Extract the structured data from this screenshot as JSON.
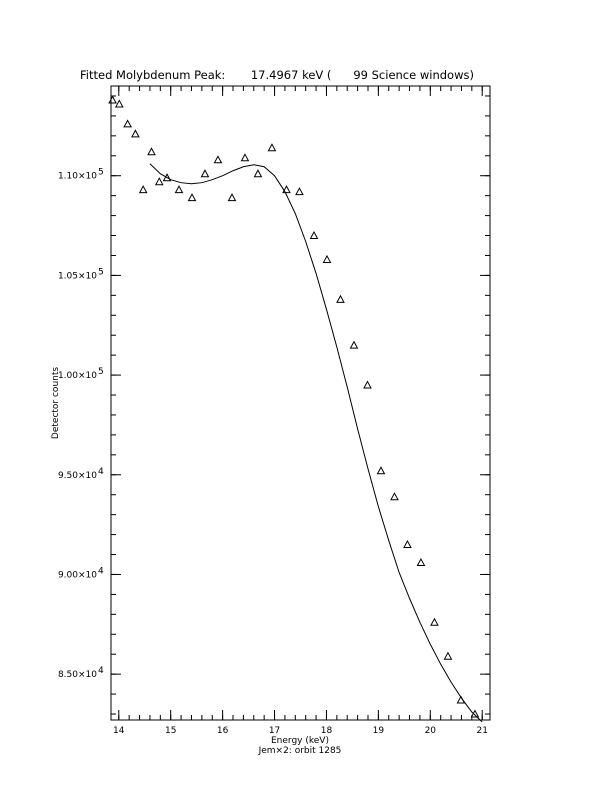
{
  "chart_data": {
    "type": "scatter",
    "title": "Fitted Molybdenum Peak:       17.4967 keV (      99 Science windows)",
    "xlabel": "Energy (keV)",
    "ylabel": "Detector counts",
    "subtitle": "Jem×2: orbit 1285",
    "xlim": [
      13.85,
      21.15
    ],
    "ylim": [
      82700,
      114500
    ],
    "x_ticks": [
      {
        "value": 14,
        "label": "14"
      },
      {
        "value": 15,
        "label": "15"
      },
      {
        "value": 16,
        "label": "16"
      },
      {
        "value": 17,
        "label": "17"
      },
      {
        "value": 18,
        "label": "18"
      },
      {
        "value": 19,
        "label": "19"
      },
      {
        "value": 20,
        "label": "20"
      },
      {
        "value": 21,
        "label": "21"
      }
    ],
    "y_ticks": [
      {
        "value": 85000,
        "mantissa": "8.50×10",
        "exp": "4"
      },
      {
        "value": 90000,
        "mantissa": "9.00×10",
        "exp": "4"
      },
      {
        "value": 95000,
        "mantissa": "9.50×10",
        "exp": "4"
      },
      {
        "value": 100000,
        "mantissa": "1.00×10",
        "exp": "5"
      },
      {
        "value": 105000,
        "mantissa": "1.05×10",
        "exp": "5"
      },
      {
        "value": 110000,
        "mantissa": "1.10×10",
        "exp": "5"
      }
    ],
    "x_minor_step": 0.2,
    "y_minor_step": 1000,
    "series": [
      {
        "marker": "triangle",
        "x": [
          13.88,
          14.01,
          14.17,
          14.32,
          14.47,
          14.63,
          14.78,
          14.93,
          15.16,
          15.41,
          15.66,
          15.91,
          16.18,
          16.43,
          16.68,
          16.95,
          17.23,
          17.48,
          17.76,
          18.01,
          18.27,
          18.53,
          18.79,
          19.05,
          19.31,
          19.56,
          19.82,
          20.08,
          20.34,
          20.59,
          20.86
        ],
        "y": [
          113800,
          113600,
          112600,
          112100,
          109300,
          111200,
          109700,
          109900,
          109300,
          108900,
          110100,
          110800,
          108900,
          110900,
          110100,
          111400,
          109300,
          109200,
          107000,
          105800,
          103800,
          101500,
          99500,
          95200,
          93900,
          91500,
          90600,
          87600,
          85900,
          83700,
          83000
        ]
      },
      {
        "type": "line",
        "x": [
          14.6,
          14.8,
          15.0,
          15.2,
          15.4,
          15.6,
          15.8,
          16.0,
          16.2,
          16.4,
          16.6,
          16.8,
          17.0,
          17.2,
          17.4,
          17.6,
          17.8,
          18.0,
          18.2,
          18.4,
          18.6,
          18.8,
          19.0,
          19.2,
          19.4,
          19.6,
          19.8,
          20.0,
          20.2,
          20.4,
          20.6,
          20.8,
          21.0
        ],
        "y": [
          110600,
          110100,
          109800,
          109650,
          109600,
          109650,
          109800,
          110000,
          110250,
          110450,
          110550,
          110450,
          110000,
          109200,
          108100,
          106700,
          105100,
          103300,
          101400,
          99400,
          97300,
          95300,
          93400,
          91700,
          90100,
          88800,
          87600,
          86500,
          85500,
          84600,
          83800,
          83100,
          82600
        ]
      }
    ]
  }
}
